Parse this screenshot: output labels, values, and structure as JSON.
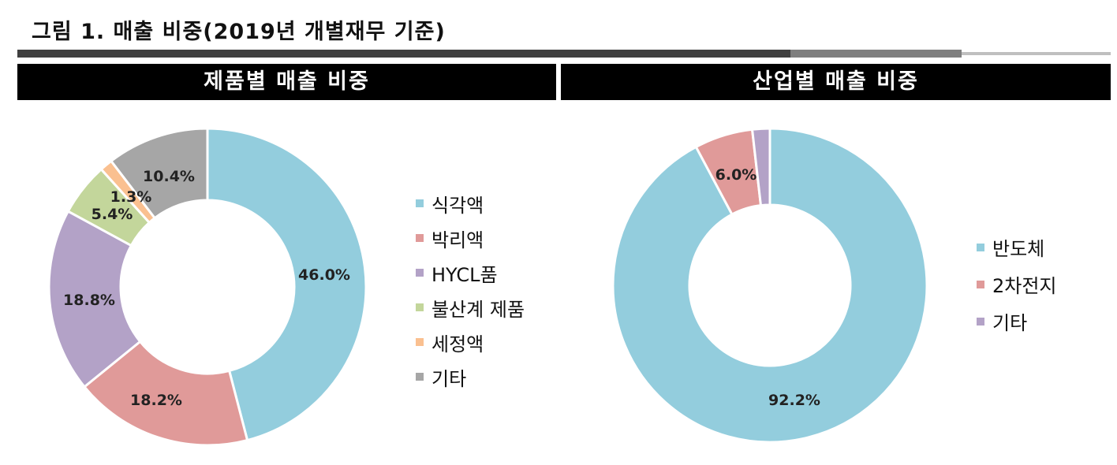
{
  "figure": {
    "title": "그림 1. 매출 비중(2019년 개별재무 기준)"
  },
  "colors": {
    "rule_dark": "#404040",
    "rule_mid": "#7f7f7f",
    "rule_light": "#bfbfbf"
  },
  "chart_data": [
    {
      "type": "pie",
      "title": "제품별 매출 비중",
      "donut": true,
      "legend_position": "right",
      "categories": [
        "식각액",
        "박리액",
        "HYCL품",
        "불산계 제품",
        "세정액",
        "기타"
      ],
      "values": [
        46.0,
        18.2,
        18.8,
        5.4,
        1.3,
        10.4
      ],
      "value_labels": [
        "46.0%",
        "18.2%",
        "18.8%",
        "5.4%",
        "1.3%",
        "10.4%"
      ],
      "colors": [
        "#93cddd",
        "#e09a99",
        "#b3a2c7",
        "#c3d69b",
        "#fac090",
        "#a6a6a6"
      ]
    },
    {
      "type": "pie",
      "title": "산업별 매출 비중",
      "donut": true,
      "legend_position": "right",
      "categories": [
        "반도체",
        "2차전지",
        "기타"
      ],
      "values": [
        92.2,
        6.0,
        1.8
      ],
      "value_labels": [
        "92.2%",
        "6.0%",
        ""
      ],
      "colors": [
        "#93cddd",
        "#e09a99",
        "#b3a2c7"
      ]
    }
  ]
}
